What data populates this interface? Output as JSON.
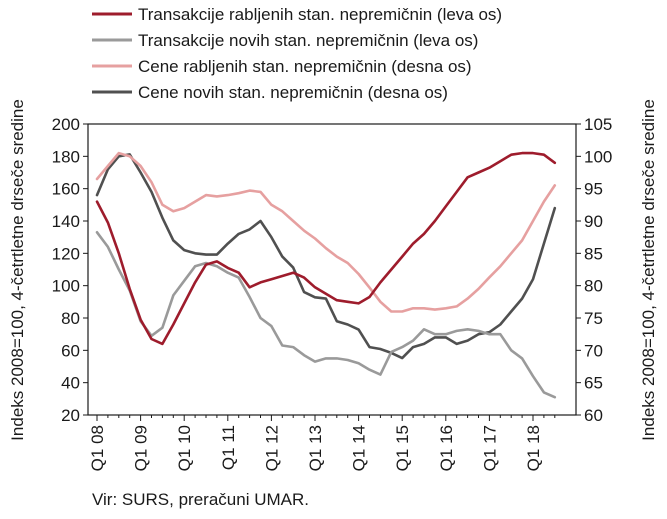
{
  "chart_data": {
    "type": "line",
    "legend_position": "top",
    "grid": false,
    "x_ticks": [
      "Q1 08",
      "Q1 09",
      "Q1 10",
      "Q1 11",
      "Q1 12",
      "Q1 13",
      "Q1 14",
      "Q1 15",
      "Q1 16",
      "Q1 17",
      "Q1 18"
    ],
    "y_left": {
      "label": "Indeks 2008=100, 4-četrtletne drseče sredine",
      "range": [
        20,
        200
      ],
      "ticks": [
        20,
        40,
        60,
        80,
        100,
        120,
        140,
        160,
        180,
        200
      ]
    },
    "y_right": {
      "label": "Indeks 2008=100, 4-četrtletne drseče sredine",
      "range": [
        60,
        105
      ],
      "ticks": [
        60,
        65,
        70,
        75,
        80,
        85,
        90,
        95,
        100,
        105
      ]
    },
    "series": [
      {
        "name": "Transakcije rabljenih stan. nepremičnin (leva os)",
        "axis": "left",
        "color": "#9e1c2c",
        "values": [
          152,
          139,
          120,
          98,
          79,
          67,
          64,
          76,
          89,
          102,
          113,
          115,
          111,
          108,
          99,
          102,
          104,
          106,
          108,
          105,
          99,
          95,
          91,
          90,
          89,
          93,
          102,
          110,
          118,
          126,
          132,
          140,
          149,
          158,
          167,
          170,
          173,
          177,
          181,
          182,
          182,
          181,
          176
        ]
      },
      {
        "name": "Transakcije novih stan. nepremičnin (leva os)",
        "axis": "left",
        "color": "#9a9a9a",
        "values": [
          133,
          124,
          110,
          97,
          78,
          69,
          74,
          94,
          103,
          112,
          114,
          112,
          108,
          105,
          93,
          80,
          75,
          63,
          62,
          57,
          53,
          55,
          55,
          54,
          52,
          48,
          45,
          59,
          62,
          66,
          73,
          70,
          70,
          72,
          73,
          72,
          70,
          70,
          60,
          55,
          44,
          34,
          31
        ]
      },
      {
        "name": "Cene rabljenih stan. nepremičnin (desna os)",
        "axis": "right",
        "color": "#e6a0a0",
        "values": [
          96.5,
          98.5,
          100.5,
          100,
          98.5,
          96,
          92.5,
          91.5,
          92,
          93,
          94,
          93.8,
          94,
          94.3,
          94.7,
          94.5,
          92.5,
          91.5,
          90,
          88.5,
          87.3,
          85.8,
          84.5,
          83.5,
          81.8,
          79.7,
          77.5,
          76,
          76,
          76.5,
          76.5,
          76.3,
          76.5,
          76.8,
          78,
          79.5,
          81.3,
          83,
          85,
          87,
          90,
          93,
          95.5
        ]
      },
      {
        "name": "Cene novih stan. nepremičnin (desna os)",
        "axis": "right",
        "color": "#505050",
        "values": [
          94,
          98,
          100,
          100.3,
          97.5,
          94.5,
          90.5,
          87,
          85.5,
          85,
          84.8,
          84.8,
          86.5,
          88,
          88.7,
          90,
          87.5,
          84.5,
          82.8,
          79,
          78.2,
          78,
          74.5,
          74,
          73.2,
          70.5,
          70.2,
          69.6,
          68.8,
          70.5,
          71,
          72,
          72,
          71,
          71.5,
          72.5,
          72.8,
          74,
          76,
          78,
          81,
          86.5,
          92
        ]
      }
    ],
    "source": "Vir: SURS, preračuni UMAR."
  }
}
